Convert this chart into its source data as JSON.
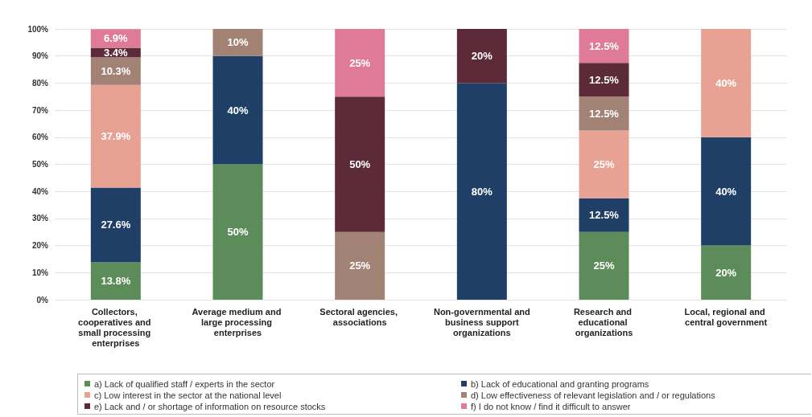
{
  "chart_data": {
    "type": "bar",
    "stacked": true,
    "categories": [
      "Collectors, cooperatives and small processing enterprises",
      "Average medium and large processing enterprises",
      "Sectoral agencies, associations",
      "Non-governmental and business support organizations",
      "Research and educational organizations",
      "Local, regional and central government"
    ],
    "series": [
      {
        "name": "a) Lack of qualified staff / experts in the sector",
        "color": "#5b8c5a",
        "values": [
          13.8,
          50,
          0,
          0,
          25,
          20
        ],
        "value_labels": [
          "13.8%",
          "50%",
          null,
          null,
          "25%",
          "20%"
        ]
      },
      {
        "name": "b) Lack of educational and granting programs",
        "color": "#1f3f66",
        "values": [
          27.6,
          40,
          0,
          80,
          12.5,
          40
        ],
        "value_labels": [
          "27.6%",
          "40%",
          null,
          "80%",
          "12.5%",
          "40%"
        ]
      },
      {
        "name": "c) Low interest in the sector at the national level",
        "color": "#e8a293",
        "values": [
          37.9,
          0,
          0,
          0,
          25,
          40
        ],
        "value_labels": [
          "37.9%",
          null,
          null,
          null,
          "25%",
          "40%"
        ]
      },
      {
        "name": "d) Low effectiveness of relevant legislation and / or regulations",
        "color": "#a38276",
        "values": [
          10.3,
          10,
          25,
          0,
          12.5,
          0
        ],
        "value_labels": [
          "10.3%",
          "10%",
          "25%",
          null,
          "12.5%",
          null
        ]
      },
      {
        "name": "e) Lack and / or shortage of information on resource stocks",
        "color": "#5c2a38",
        "values": [
          3.4,
          0,
          50,
          20,
          12.5,
          0
        ],
        "value_labels": [
          "3.4%",
          null,
          "50%",
          "20%",
          "12.5%",
          null
        ]
      },
      {
        "name": "f) I do not know / find it difficult to answer",
        "color": "#e07a99",
        "values": [
          6.9,
          0,
          25,
          0,
          12.5,
          0
        ],
        "value_labels": [
          "6.9%",
          null,
          "25%",
          null,
          "12.5%",
          null
        ]
      }
    ],
    "ylim": [
      0,
      100
    ],
    "yticks": [
      {
        "value": 0,
        "label": "0%"
      },
      {
        "value": 10,
        "label": "10%"
      },
      {
        "value": 20,
        "label": "20%"
      },
      {
        "value": 30,
        "label": "30%"
      },
      {
        "value": 40,
        "label": "40%"
      },
      {
        "value": 50,
        "label": "50%"
      },
      {
        "value": 60,
        "label": "60%"
      },
      {
        "value": 70,
        "label": "70%"
      },
      {
        "value": 80,
        "label": "80%"
      },
      {
        "value": 90,
        "label": "90%"
      },
      {
        "value": 100,
        "label": "100%"
      }
    ],
    "grid": "y",
    "legend": "bottom"
  }
}
